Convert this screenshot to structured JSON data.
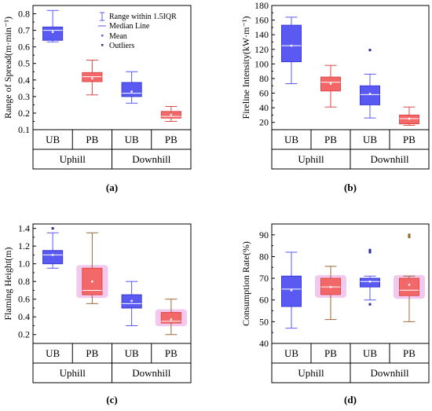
{
  "legend": {
    "range_label": "Range within 1.5IQR",
    "median_label": "Median Line",
    "mean_label": "Mean",
    "outliers_label": "Outliers"
  },
  "colors": {
    "uphill_ub_fill": "#5a5af2",
    "uphill_ub_edge": "#3a3ad8",
    "pb_fill": "#f26868",
    "pb_edge": "#e04848",
    "whisker_blue": "#5a5af2",
    "whisker_red": "#d94a4a",
    "whisker_brown": "#9b6a3a",
    "pink_halo": "#f3c8ee",
    "outlier_blue": "#2a2a9a",
    "outlier_brown": "#8a6a2a"
  },
  "chart_data": [
    {
      "id": "a",
      "type": "box",
      "panel_label": "(a)",
      "ylabel": "Range of Spread(m·min⁻¹)",
      "ylim": [
        0.1,
        0.85
      ],
      "yticks": [
        "0.1",
        "0.2",
        "0.3",
        "0.4",
        "0.5",
        "0.6",
        "0.7",
        "0.8"
      ],
      "categories": [
        "UB",
        "PB",
        "UB",
        "PB"
      ],
      "groups": [
        "Uphill",
        "Downhill"
      ],
      "legend": true,
      "boxes": [
        {
          "category": "UB",
          "group": "Uphill",
          "min": 0.63,
          "q1": 0.64,
          "median": 0.7,
          "q3": 0.72,
          "max": 0.82,
          "mean": 0.69,
          "outliers": [],
          "style": "blue"
        },
        {
          "category": "PB",
          "group": "Uphill",
          "min": 0.31,
          "q1": 0.39,
          "median": 0.42,
          "q3": 0.445,
          "max": 0.52,
          "mean": 0.41,
          "outliers": [],
          "style": "red"
        },
        {
          "category": "UB",
          "group": "Downhill",
          "min": 0.26,
          "q1": 0.3,
          "median": 0.32,
          "q3": 0.385,
          "max": 0.45,
          "mean": 0.33,
          "outliers": [],
          "style": "blue"
        },
        {
          "category": "PB",
          "group": "Downhill",
          "min": 0.15,
          "q1": 0.17,
          "median": 0.18,
          "q3": 0.21,
          "max": 0.24,
          "mean": 0.19,
          "outliers": [],
          "style": "red"
        }
      ]
    },
    {
      "id": "b",
      "type": "box",
      "panel_label": "(b)",
      "ylabel": "Fireline Intensity(kW·m⁻¹)",
      "ylim": [
        10,
        180
      ],
      "yticks": [
        "20",
        "40",
        "60",
        "80",
        "100",
        "120",
        "140",
        "160",
        "180"
      ],
      "categories": [
        "UB",
        "PB",
        "UB",
        "PB"
      ],
      "groups": [
        "Uphill",
        "Downhill"
      ],
      "legend": false,
      "boxes": [
        {
          "category": "UB",
          "group": "Uphill",
          "min": 73,
          "q1": 103,
          "median": 125,
          "q3": 153,
          "max": 164,
          "mean": 125,
          "outliers": [],
          "style": "blue"
        },
        {
          "category": "PB",
          "group": "Uphill",
          "min": 41,
          "q1": 63,
          "median": 75,
          "q3": 82,
          "max": 98,
          "mean": 73,
          "outliers": [],
          "style": "red"
        },
        {
          "category": "UB",
          "group": "Downhill",
          "min": 26,
          "q1": 44,
          "median": 58,
          "q3": 70,
          "max": 86,
          "mean": 59,
          "outliers": [
            119
          ],
          "style": "blue"
        },
        {
          "category": "PB",
          "group": "Downhill",
          "min": 16,
          "q1": 18,
          "median": 25,
          "q3": 30,
          "max": 41,
          "mean": 25,
          "outliers": [],
          "style": "red"
        }
      ]
    },
    {
      "id": "c",
      "type": "box",
      "panel_label": "(c)",
      "ylabel": "Flaming Height(m)",
      "ylim": [
        0.1,
        1.45
      ],
      "yticks": [
        "0.2",
        "0.4",
        "0.6",
        "0.8",
        "1.0",
        "1.2",
        "1.4"
      ],
      "categories": [
        "UB",
        "PB",
        "UB",
        "PB"
      ],
      "groups": [
        "Uphill",
        "Downhill"
      ],
      "legend": false,
      "boxes": [
        {
          "category": "UB",
          "group": "Uphill",
          "min": 0.95,
          "q1": 1.0,
          "median": 1.1,
          "q3": 1.15,
          "max": 1.35,
          "mean": 1.1,
          "outliers": [
            1.4
          ],
          "style": "blue"
        },
        {
          "category": "PB",
          "group": "Uphill",
          "min": 0.55,
          "q1": 0.65,
          "median": 0.7,
          "q3": 0.95,
          "max": 1.35,
          "mean": 0.8,
          "outliers": [],
          "style": "red_brown"
        },
        {
          "category": "UB",
          "group": "Downhill",
          "min": 0.3,
          "q1": 0.5,
          "median": 0.55,
          "q3": 0.65,
          "max": 0.8,
          "mean": 0.58,
          "outliers": [],
          "style": "blue"
        },
        {
          "category": "PB",
          "group": "Downhill",
          "min": 0.2,
          "q1": 0.33,
          "median": 0.35,
          "q3": 0.45,
          "max": 0.6,
          "mean": 0.37,
          "outliers": [],
          "style": "red_brown"
        }
      ]
    },
    {
      "id": "d",
      "type": "box",
      "panel_label": "(d)",
      "ylabel": "Consumption Rate(%)",
      "ylim": [
        40,
        95
      ],
      "yticks": [
        "40",
        "50",
        "60",
        "70",
        "80",
        "90"
      ],
      "categories": [
        "UB",
        "PB",
        "UB",
        "PB"
      ],
      "groups": [
        "Uphill",
        "Downhill"
      ],
      "legend": false,
      "boxes": [
        {
          "category": "UB",
          "group": "Uphill",
          "min": 47,
          "q1": 57,
          "median": 65,
          "q3": 71,
          "max": 82,
          "mean": 64.5,
          "outliers": [],
          "style": "blue"
        },
        {
          "category": "PB",
          "group": "Uphill",
          "min": 51,
          "q1": 62.5,
          "median": 66,
          "q3": 70,
          "max": 75.5,
          "mean": 66,
          "outliers": [],
          "style": "red_brown"
        },
        {
          "category": "UB",
          "group": "Downhill",
          "min": 60,
          "q1": 66,
          "median": 68.5,
          "q3": 70,
          "max": 71,
          "mean": 68.5,
          "outliers": [
            58,
            82,
            83
          ],
          "style": "blue"
        },
        {
          "category": "PB",
          "group": "Downhill",
          "min": 50,
          "q1": 62,
          "median": 64.5,
          "q3": 70,
          "max": 71,
          "mean": 67,
          "outliers": [
            89,
            90
          ],
          "style": "red_brown"
        }
      ]
    }
  ]
}
